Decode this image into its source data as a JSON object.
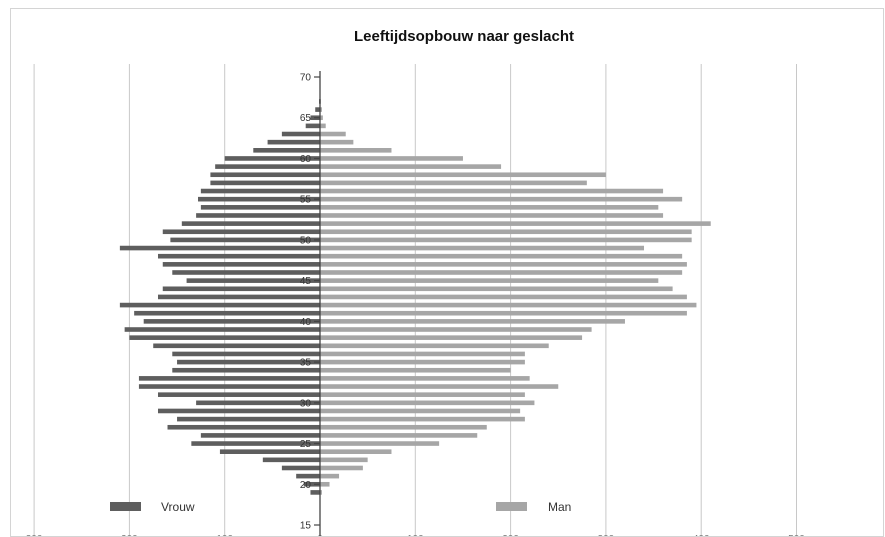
{
  "chart_data": {
    "type": "bar",
    "orientation": "horizontal",
    "title": "Leeftijdsopbouw naar geslacht",
    "xlabel": "",
    "ylabel": "",
    "xlim": [
      -500,
      500
    ],
    "ylim": [
      15,
      71
    ],
    "grid": true,
    "legend_position": "bottom",
    "age_ticks": [
      {
        "age": 70,
        "label": "70"
      },
      {
        "age": 65,
        "label": "65"
      },
      {
        "age": 60,
        "label": "60"
      },
      {
        "age": 55,
        "label": "55"
      },
      {
        "age": 50,
        "label": "50"
      },
      {
        "age": 45,
        "label": "45"
      },
      {
        "age": 40,
        "label": "40"
      },
      {
        "age": 35,
        "label": "35"
      },
      {
        "age": 30,
        "label": "30"
      },
      {
        "age": 25,
        "label": "25"
      },
      {
        "age": 20,
        "label": "20"
      },
      {
        "age": 15,
        "label": "15"
      }
    ],
    "x_ticks": [
      {
        "value": -500,
        "label": "500"
      },
      {
        "value": -400,
        "label": "400"
      },
      {
        "value": -300,
        "label": "300"
      },
      {
        "value": -200,
        "label": "200"
      },
      {
        "value": -100,
        "label": "100"
      },
      {
        "value": 0,
        "label": "0"
      },
      {
        "value": 100,
        "label": "100"
      },
      {
        "value": 200,
        "label": "200"
      },
      {
        "value": 300,
        "label": "300"
      },
      {
        "value": 400,
        "label": "400"
      },
      {
        "value": 500,
        "label": "500"
      }
    ],
    "ages": [
      67,
      66,
      65,
      64,
      63,
      62,
      61,
      60,
      59,
      58,
      57,
      56,
      55,
      54,
      53,
      52,
      51,
      50,
      49,
      48,
      47,
      46,
      45,
      44,
      43,
      42,
      41,
      40,
      39,
      38,
      37,
      36,
      35,
      34,
      33,
      32,
      31,
      30,
      29,
      28,
      27,
      26,
      25,
      24,
      23,
      22,
      21,
      20,
      19
    ],
    "series": [
      {
        "name": "Vrouw",
        "color": "#5e5e5e",
        "values": [
          1,
          5,
          10,
          15,
          40,
          55,
          70,
          100,
          110,
          115,
          115,
          125,
          128,
          125,
          130,
          145,
          165,
          157,
          210,
          170,
          165,
          155,
          140,
          165,
          170,
          210,
          195,
          185,
          205,
          200,
          175,
          155,
          150,
          155,
          190,
          190,
          170,
          130,
          170,
          150,
          160,
          125,
          135,
          105,
          60,
          40,
          25,
          17,
          10
        ]
      },
      {
        "name": "Man",
        "color": "#a6a6a6",
        "values": [
          1,
          2,
          3,
          6,
          27,
          35,
          75,
          150,
          190,
          300,
          280,
          360,
          380,
          355,
          360,
          410,
          390,
          390,
          340,
          380,
          385,
          380,
          355,
          370,
          385,
          395,
          385,
          320,
          285,
          275,
          240,
          215,
          215,
          200,
          220,
          250,
          215,
          225,
          210,
          215,
          175,
          165,
          125,
          75,
          50,
          45,
          20,
          10,
          2
        ]
      }
    ]
  }
}
